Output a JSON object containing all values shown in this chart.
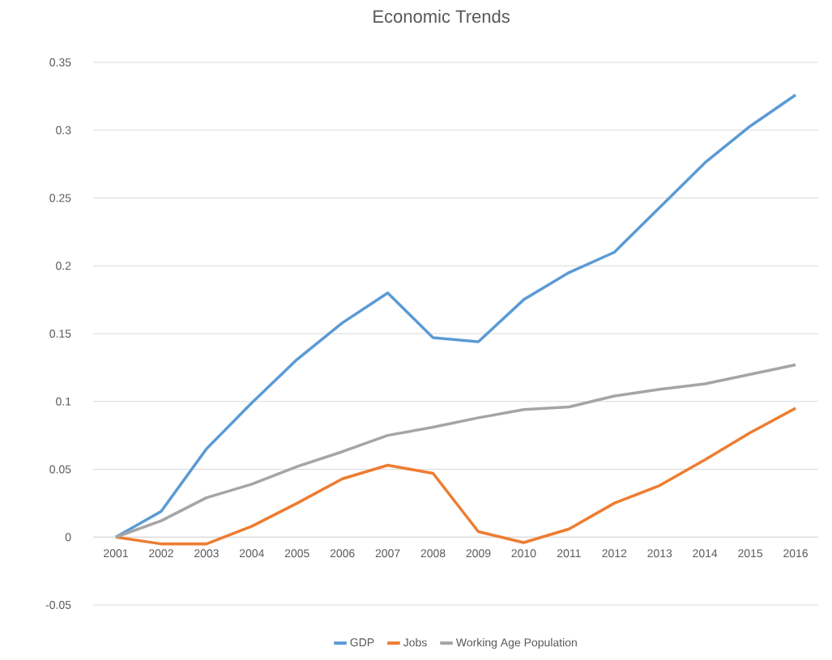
{
  "chart_data": {
    "type": "line",
    "title": "Economic Trends",
    "categories": [
      "2001",
      "2002",
      "2003",
      "2004",
      "2005",
      "2006",
      "2007",
      "2008",
      "2009",
      "2010",
      "2011",
      "2012",
      "2013",
      "2014",
      "2015",
      "2016"
    ],
    "series": [
      {
        "name": "GDP",
        "color": "#5b9bd5",
        "values": [
          0,
          0.019,
          0.065,
          0.099,
          0.131,
          0.158,
          0.18,
          0.147,
          0.144,
          0.175,
          0.195,
          0.21,
          0.243,
          0.276,
          0.303,
          0.326
        ]
      },
      {
        "name": "Jobs",
        "color": "#ed7d31",
        "values": [
          0,
          -0.005,
          -0.005,
          0.008,
          0.025,
          0.043,
          0.053,
          0.047,
          0.004,
          -0.004,
          0.006,
          0.025,
          0.038,
          0.057,
          0.077,
          0.095
        ]
      },
      {
        "name": "Working Age Population",
        "color": "#a5a5a5",
        "values": [
          0,
          0.012,
          0.029,
          0.039,
          0.052,
          0.063,
          0.075,
          0.081,
          0.088,
          0.094,
          0.096,
          0.104,
          0.109,
          0.113,
          0.12,
          0.127
        ]
      }
    ],
    "ylim": [
      -0.05,
      0.35
    ],
    "yticks": [
      -0.05,
      0,
      0.05,
      0.1,
      0.15,
      0.2,
      0.25,
      0.3,
      0.35
    ],
    "grid": "y",
    "legend": "bottom",
    "marker": "none",
    "line_style": "solid"
  }
}
